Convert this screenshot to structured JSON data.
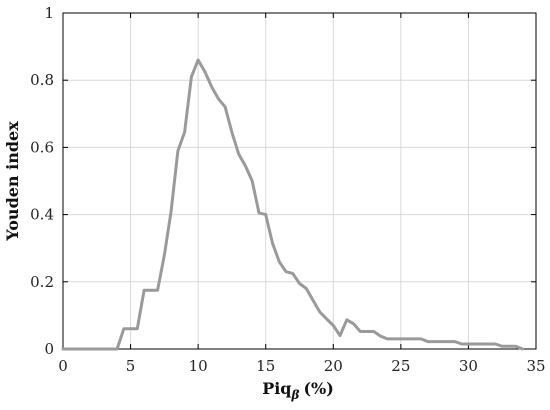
{
  "chart_data": {
    "type": "line",
    "title": "",
    "xlabel": "Piq",
    "xlabel_sub": "β",
    "xlabel_unit": "(%)",
    "ylabel": "Youden index",
    "xlim": [
      0,
      35
    ],
    "ylim": [
      0,
      1
    ],
    "xticks": [
      0,
      5,
      10,
      15,
      20,
      25,
      30,
      35
    ],
    "yticks": [
      0,
      0.2,
      0.4,
      0.6,
      0.8,
      1
    ],
    "xtick_labels": [
      "0",
      "5",
      "10",
      "15",
      "20",
      "25",
      "30",
      "35"
    ],
    "ytick_labels": [
      "0",
      "0.2",
      "0.4",
      "0.6",
      "0.8",
      "1"
    ],
    "grid": true,
    "line_color": "#9a9a9a",
    "series": [
      {
        "x": [
          0,
          4,
          4.5,
          5,
          5.5,
          6,
          6.5,
          7,
          7.5,
          8,
          8.5,
          9,
          9.5,
          10,
          10.5,
          11,
          11.5,
          12,
          12.5,
          13,
          13.5,
          14,
          14.5,
          15,
          15.5,
          16,
          16.5,
          17,
          17.5,
          18,
          18.5,
          19,
          19.5,
          20,
          20.5,
          21,
          21.5,
          22,
          22.5,
          23,
          23.5,
          24,
          24.5,
          25,
          25.5,
          26,
          26.5,
          27,
          27.5,
          28,
          28.5,
          29,
          29.5,
          30,
          30.5,
          31,
          31.5,
          32,
          32.5,
          33,
          33.5,
          34
        ],
        "y": [
          0,
          0,
          0.06,
          0.06,
          0.06,
          0.175,
          0.175,
          0.175,
          0.28,
          0.41,
          0.59,
          0.645,
          0.81,
          0.86,
          0.825,
          0.78,
          0.745,
          0.72,
          0.645,
          0.58,
          0.545,
          0.5,
          0.405,
          0.4,
          0.315,
          0.26,
          0.23,
          0.225,
          0.195,
          0.18,
          0.145,
          0.11,
          0.09,
          0.07,
          0.04,
          0.087,
          0.075,
          0.052,
          0.052,
          0.052,
          0.038,
          0.03,
          0.03,
          0.03,
          0.03,
          0.03,
          0.03,
          0.022,
          0.022,
          0.022,
          0.022,
          0.022,
          0.015,
          0.015,
          0.015,
          0.015,
          0.015,
          0.015,
          0.008,
          0.008,
          0.008,
          0
        ]
      }
    ]
  }
}
